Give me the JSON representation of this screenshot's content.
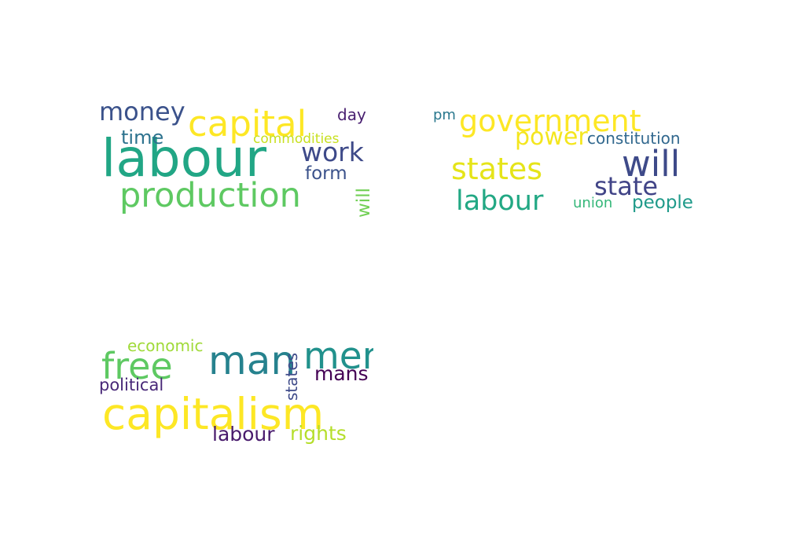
{
  "chart_data": [
    {
      "type": "wordcloud",
      "words": [
        {
          "text": "labour",
          "color": "#21a685"
        },
        {
          "text": "production",
          "color": "#5ec962"
        },
        {
          "text": "capital",
          "color": "#fde725"
        },
        {
          "text": "money",
          "color": "#3b528b"
        },
        {
          "text": "work",
          "color": "#3e4a89"
        },
        {
          "text": "time",
          "color": "#2c728e"
        },
        {
          "text": "commodities",
          "color": "#c8e020"
        },
        {
          "text": "form",
          "color": "#3b528b"
        },
        {
          "text": "day",
          "color": "#481f70"
        },
        {
          "text": "will",
          "color": "#73d056"
        }
      ]
    },
    {
      "type": "wordcloud",
      "words": [
        {
          "text": "government",
          "color": "#fde725"
        },
        {
          "text": "will",
          "color": "#3e4a89"
        },
        {
          "text": "states",
          "color": "#e5e419"
        },
        {
          "text": "state",
          "color": "#414487"
        },
        {
          "text": "power",
          "color": "#f4e61e"
        },
        {
          "text": "labour",
          "color": "#22a884"
        },
        {
          "text": "constitution",
          "color": "#31688e"
        },
        {
          "text": "people",
          "color": "#1f9a8a"
        },
        {
          "text": "pm",
          "color": "#2a788e"
        },
        {
          "text": "union",
          "color": "#35b779"
        }
      ]
    },
    {
      "type": "wordcloud",
      "words": [
        {
          "text": "capitalism",
          "color": "#fde725"
        },
        {
          "text": "man",
          "color": "#26828e"
        },
        {
          "text": "men",
          "color": "#21918c"
        },
        {
          "text": "free",
          "color": "#5ec962"
        },
        {
          "text": "mans",
          "color": "#440154"
        },
        {
          "text": "political",
          "color": "#482878"
        },
        {
          "text": "economic",
          "color": "#a0da39"
        },
        {
          "text": "rights",
          "color": "#b5de2b"
        },
        {
          "text": "labour",
          "color": "#481a6c"
        },
        {
          "text": "states",
          "color": "#3e4a89"
        }
      ]
    }
  ]
}
